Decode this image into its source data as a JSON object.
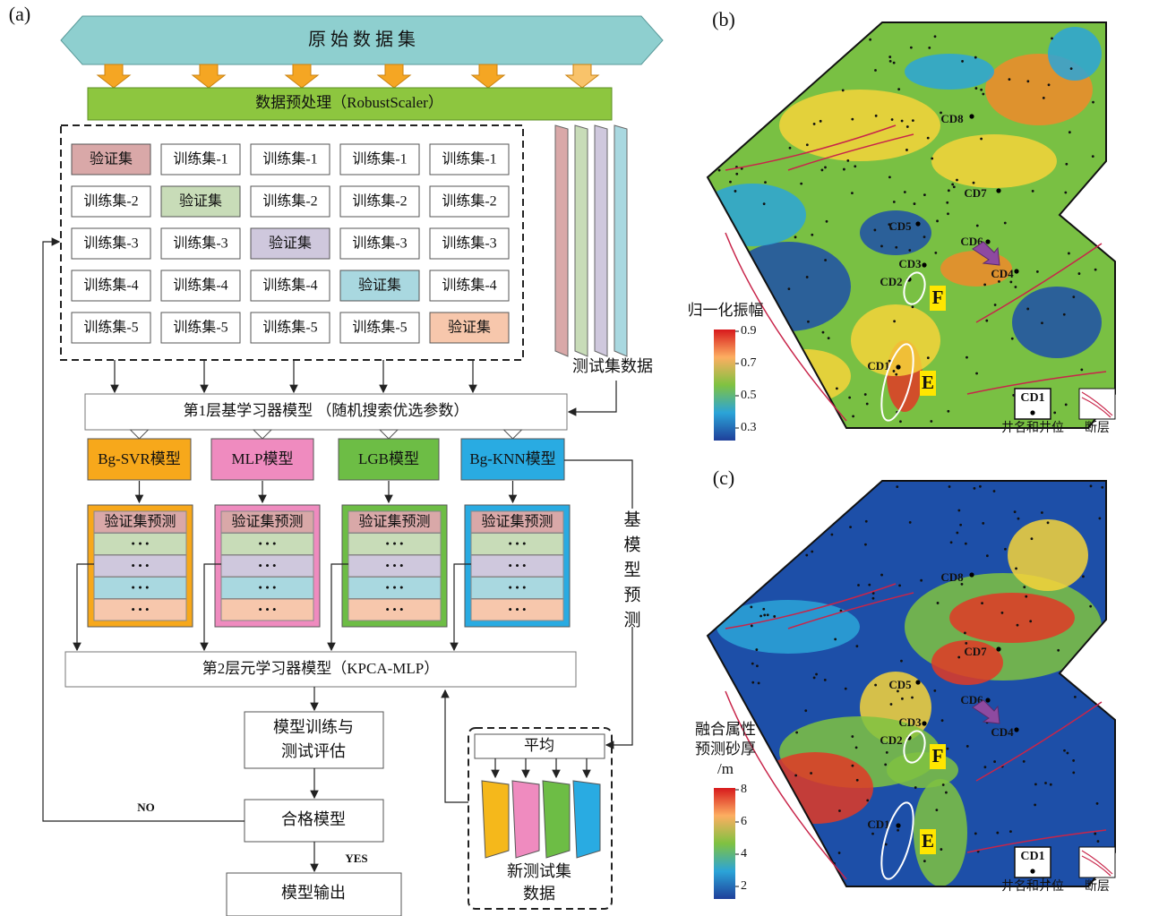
{
  "panel_a": {
    "label": "(a)",
    "dataset": "原 始 数 据 集",
    "preprocess": "数据预处理（RobustScaler）",
    "grid": [
      [
        "验证集",
        "训练集-1",
        "训练集-1",
        "训练集-1",
        "训练集-1"
      ],
      [
        "训练集-2",
        "验证集",
        "训练集-2",
        "训练集-2",
        "训练集-2"
      ],
      [
        "训练集-3",
        "训练集-3",
        "验证集",
        "训练集-3",
        "训练集-3"
      ],
      [
        "训练集-4",
        "训练集-4",
        "训练集-4",
        "验证集",
        "训练集-4"
      ],
      [
        "训练集-5",
        "训练集-5",
        "训练集-5",
        "训练集-5",
        "验证集"
      ]
    ],
    "test_data": "测试集数据",
    "layer1": "第1层基学习器模型 （随机搜索优选参数）",
    "models": [
      "Bg-SVR模型",
      "MLP模型",
      "LGB模型",
      "Bg-KNN模型"
    ],
    "pred_header": "验证集预测",
    "dots": "• • •",
    "base_pred": [
      "基",
      "模",
      "型",
      "预",
      "测"
    ],
    "layer2": "第2层元学习器模型（KPCA-MLP）",
    "train": [
      "模型训练与",
      "测试评估"
    ],
    "qualified": "合格模型",
    "no": "NO",
    "yes": "YES",
    "output": "模型输出",
    "average": "平均",
    "new_test": [
      "新测试集",
      "数据"
    ]
  },
  "panel_b": {
    "label": "(b)",
    "colorbar_title": [
      "归一化振幅"
    ],
    "colorbar_ticks": [
      "0.9",
      "0.7",
      "0.5",
      "0.3"
    ],
    "wells": [
      "CD8",
      "CD7",
      "CD5",
      "CD6",
      "CD3",
      "CD2",
      "CD4",
      "CD1"
    ],
    "zones": [
      "F",
      "E"
    ],
    "legend": [
      "CD1",
      "井名和井位",
      "断层"
    ]
  },
  "panel_c": {
    "label": "(c)",
    "colorbar_title": [
      "融合属性",
      "预测砂厚",
      "/m"
    ],
    "colorbar_ticks": [
      "8",
      "6",
      "4",
      "2"
    ],
    "wells": [
      "CD8",
      "CD7",
      "CD5",
      "CD6",
      "CD3",
      "CD2",
      "CD4",
      "CD1"
    ],
    "zones": [
      "F",
      "E"
    ],
    "legend": [
      "CD1",
      "井名和井位",
      "断层"
    ]
  }
}
